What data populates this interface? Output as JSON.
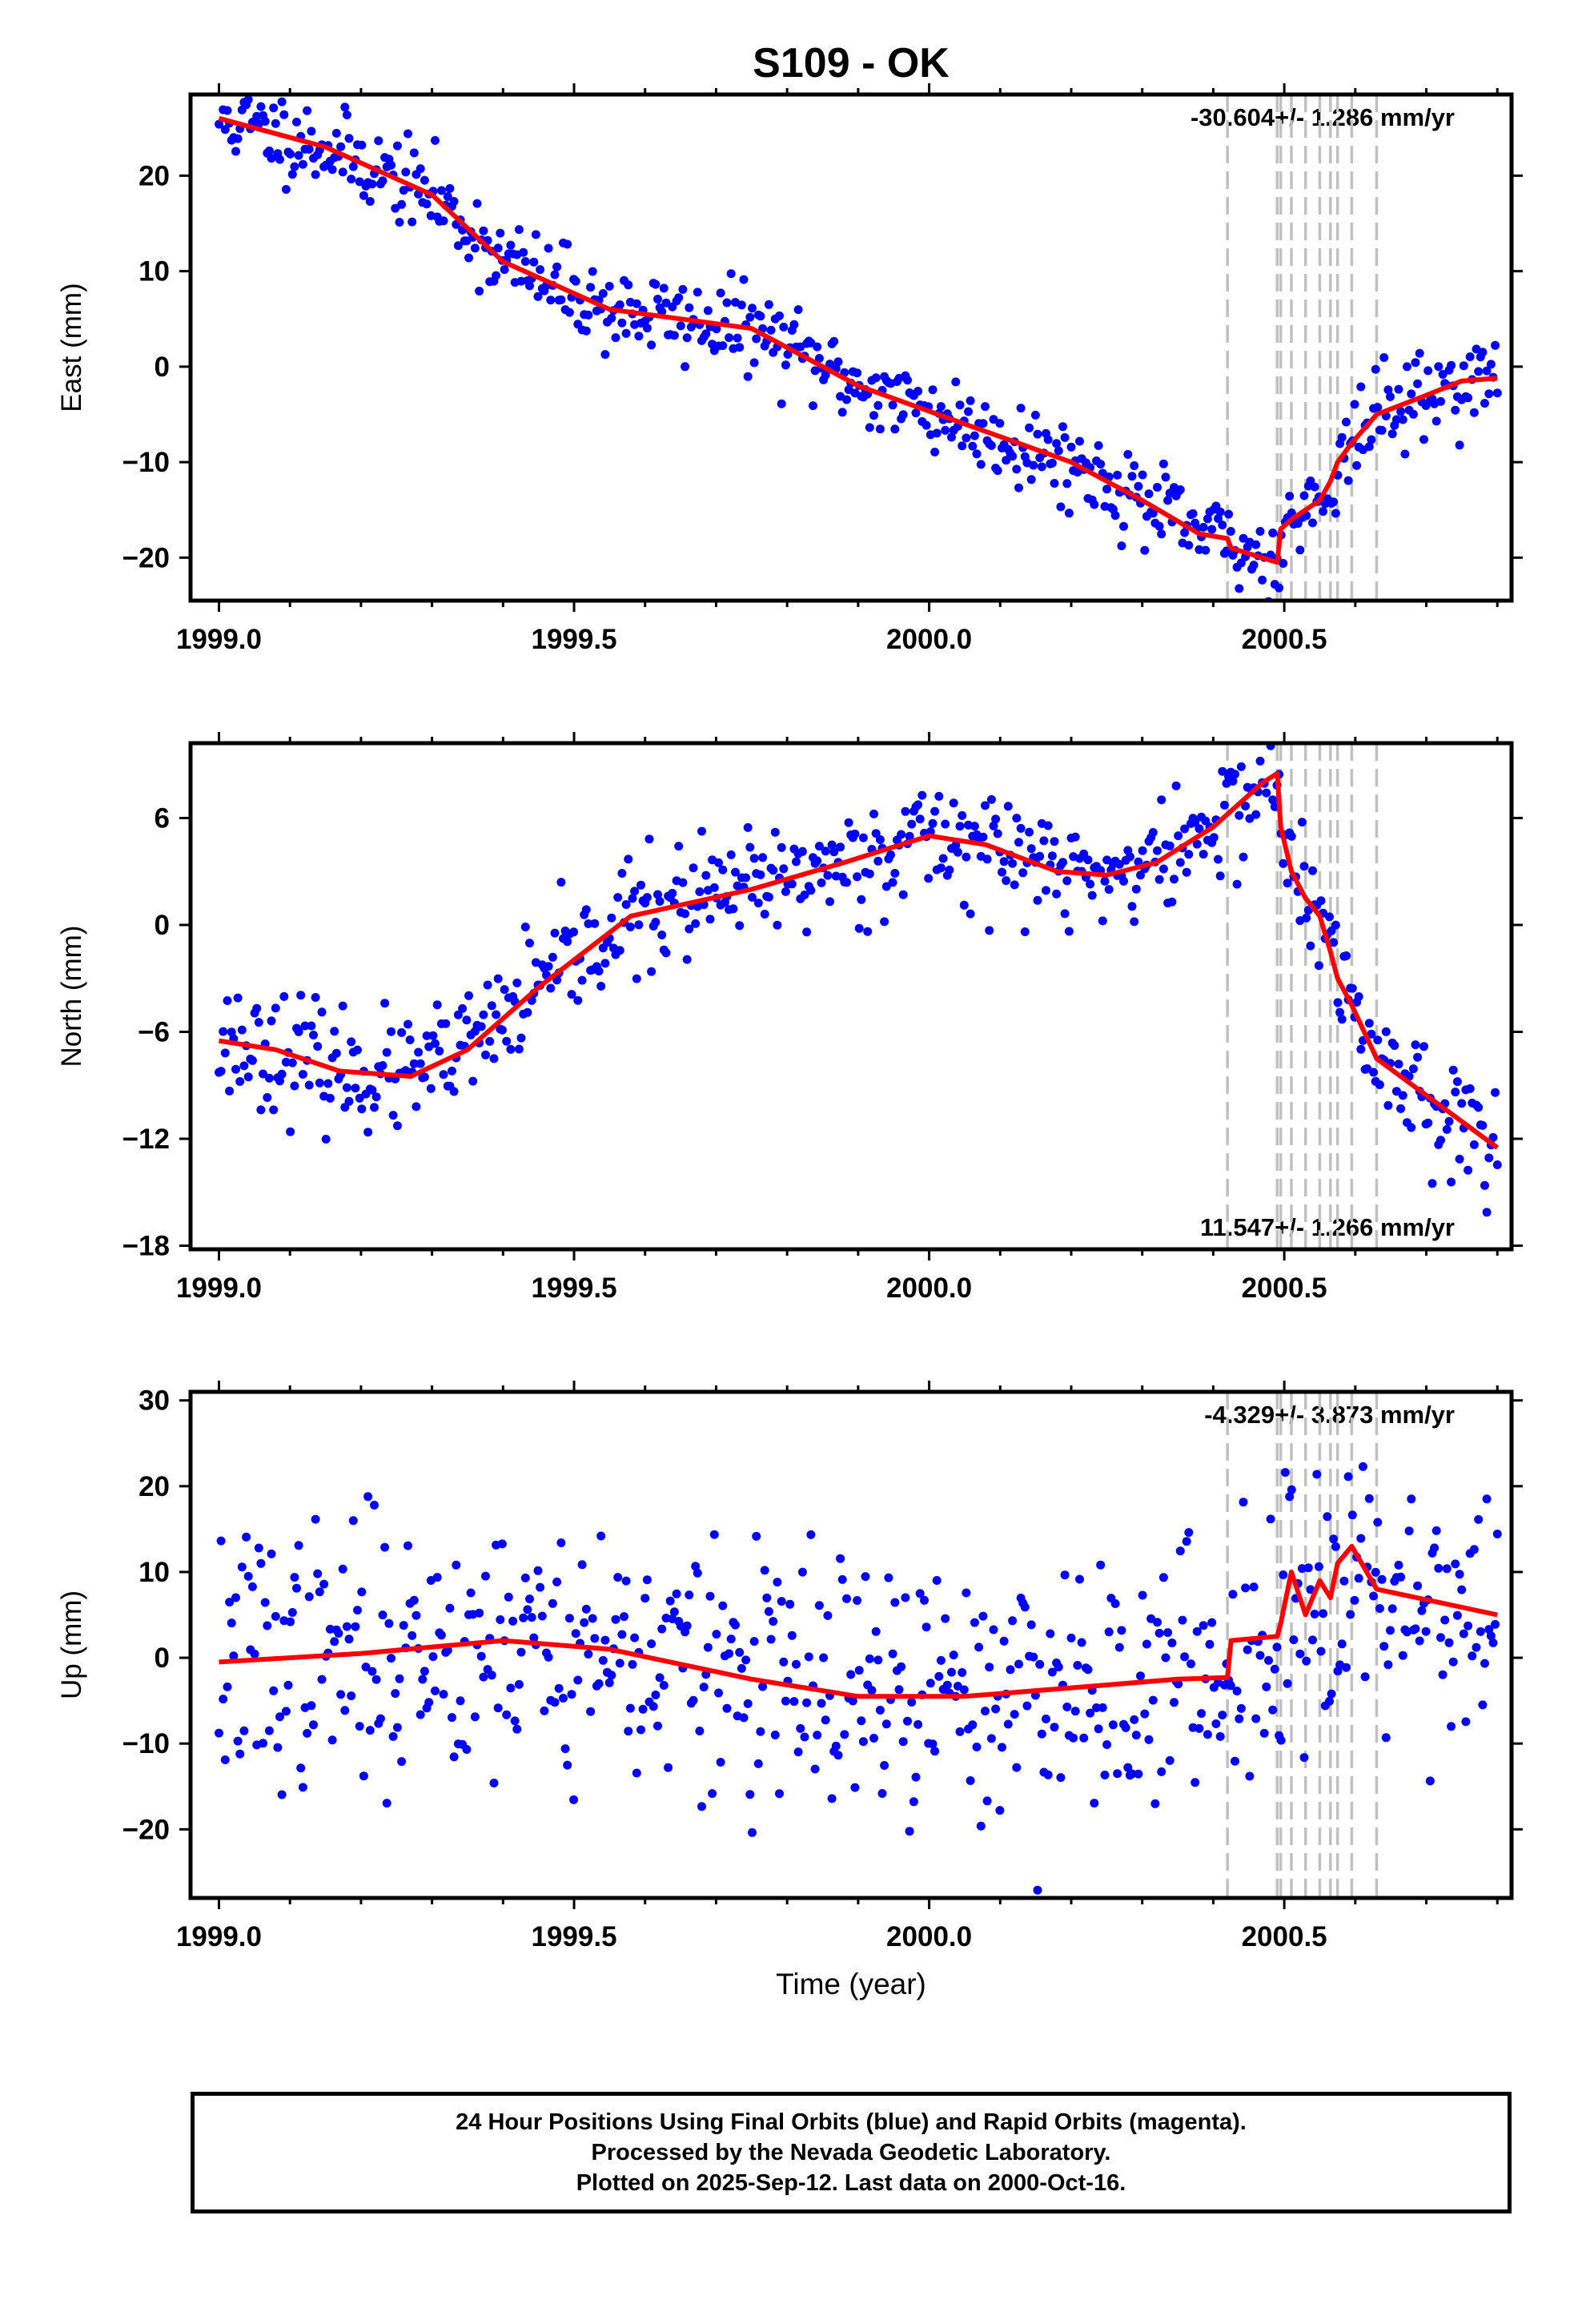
{
  "title": "S109 - OK",
  "colors": {
    "points": "#0000ff",
    "model": "#ff0000",
    "steps": "#c0c0c0",
    "frame": "#000000"
  },
  "chart_data": [
    {
      "type": "scatter",
      "ylabel": "East (mm)",
      "rate_label": "-30.604+/- 1.286 mm/yr",
      "rate_position": "top-right",
      "xlim": [
        1998.96,
        2000.82
      ],
      "ylim": [
        -24.5,
        28.5
      ],
      "xticks": [
        1999.0,
        1999.5,
        2000.0,
        2000.5
      ],
      "xtick_labels": [
        "1999.0",
        "1999.5",
        "2000.0",
        "2000.5"
      ],
      "yticks": [
        -20,
        -10,
        0,
        10,
        20
      ],
      "ytick_labels": [
        "−20",
        "−10",
        "0",
        "10",
        "20"
      ],
      "step_epochs": [
        2000.42,
        2000.49,
        2000.495,
        2000.51,
        2000.53,
        2000.55,
        2000.565,
        2000.575,
        2000.595,
        2000.63
      ],
      "model_line": {
        "x": [
          1999.0,
          1999.15,
          1999.3,
          1999.4,
          1999.55,
          1999.75,
          1999.9,
          2000.05,
          2000.2,
          2000.3,
          2000.38,
          2000.42,
          2000.425,
          2000.49,
          2000.495,
          2000.51,
          2000.53,
          2000.55,
          2000.565,
          2000.575,
          2000.595,
          2000.63,
          2000.7,
          2000.75,
          2000.8
        ],
        "y": [
          26,
          23,
          18,
          11,
          6,
          4,
          -2,
          -6,
          -10,
          -14,
          -17.5,
          -18,
          -19,
          -20.5,
          -17,
          -16,
          -15,
          -14,
          -12,
          -10,
          -8,
          -5,
          -3,
          -1.5,
          -1.2
        ]
      },
      "points": {
        "seed": 11,
        "count": 610,
        "noise_mm": 2.2,
        "x_range": [
          1999.0,
          2000.8
        ]
      }
    },
    {
      "type": "scatter",
      "ylabel": "North (mm)",
      "rate_label": "11.547+/- 1.266 mm/yr",
      "rate_position": "bottom-right",
      "xlim": [
        1998.96,
        2000.82
      ],
      "ylim": [
        -18.2,
        10.2
      ],
      "xticks": [
        1999.0,
        1999.5,
        2000.0,
        2000.5
      ],
      "xtick_labels": [
        "1999.0",
        "1999.5",
        "2000.0",
        "2000.5"
      ],
      "yticks": [
        -18,
        -12,
        -6,
        0,
        6
      ],
      "ytick_labels": [
        "−18",
        "−12",
        "−6",
        "0",
        "6"
      ],
      "step_epochs": [
        2000.42,
        2000.49,
        2000.495,
        2000.51,
        2000.53,
        2000.55,
        2000.565,
        2000.575,
        2000.595,
        2000.63
      ],
      "model_line": {
        "x": [
          1999.0,
          1999.08,
          1999.17,
          1999.27,
          1999.35,
          1999.45,
          1999.58,
          1999.75,
          1999.88,
          2000.0,
          2000.08,
          2000.18,
          2000.25,
          2000.32,
          2000.4,
          2000.47,
          2000.49,
          2000.495,
          2000.51,
          2000.53,
          2000.55,
          2000.565,
          2000.575,
          2000.595,
          2000.63,
          2000.8
        ],
        "y": [
          -6.5,
          -7,
          -8.2,
          -8.5,
          -7,
          -3.5,
          0.5,
          2,
          3.5,
          5,
          4.5,
          3,
          2.8,
          3.5,
          5.5,
          8,
          8.5,
          5.5,
          3,
          1.5,
          0.5,
          -1.5,
          -3,
          -4.5,
          -7.5,
          -12.5
        ]
      },
      "points": {
        "seed": 23,
        "count": 610,
        "noise_mm": 1.6,
        "x_range": [
          1999.0,
          2000.8
        ]
      }
    },
    {
      "type": "scatter",
      "ylabel": "Up (mm)",
      "xlabel": "Time (year)",
      "rate_label": "-4.329+/- 3.873 mm/yr",
      "rate_position": "top-right",
      "xlim": [
        1998.96,
        2000.82
      ],
      "ylim": [
        -28,
        31
      ],
      "xticks": [
        1999.0,
        1999.5,
        2000.0,
        2000.5
      ],
      "xtick_labels": [
        "1999.0",
        "1999.5",
        "2000.0",
        "2000.5"
      ],
      "yticks": [
        -20,
        -10,
        0,
        10,
        20,
        30
      ],
      "ytick_labels": [
        "−20",
        "−10",
        "0",
        "10",
        "20",
        "30"
      ],
      "step_epochs": [
        2000.42,
        2000.49,
        2000.495,
        2000.51,
        2000.53,
        2000.55,
        2000.565,
        2000.575,
        2000.595,
        2000.63
      ],
      "model_line": {
        "x": [
          1999.0,
          1999.2,
          1999.4,
          1999.55,
          1999.75,
          1999.9,
          2000.05,
          2000.2,
          2000.35,
          2000.42,
          2000.425,
          2000.49,
          2000.495,
          2000.51,
          2000.53,
          2000.55,
          2000.565,
          2000.575,
          2000.595,
          2000.63,
          2000.8
        ],
        "y": [
          -0.5,
          0.5,
          2,
          1,
          -2.5,
          -4.5,
          -4.5,
          -3.5,
          -2.5,
          -2.3,
          2,
          2.5,
          4,
          10,
          5,
          9,
          7,
          11,
          13,
          8,
          5
        ]
      },
      "points": {
        "seed": 37,
        "count": 610,
        "noise_mm": 7.5,
        "x_range": [
          1999.0,
          2000.8
        ]
      }
    }
  ],
  "footer": {
    "line1": "24 Hour Positions Using Final Orbits (blue) and Rapid Orbits (magenta).",
    "line2": "Processed by the Nevada Geodetic Laboratory.",
    "line3": "Plotted on 2025-Sep-12. Last data on 2000-Oct-16."
  }
}
